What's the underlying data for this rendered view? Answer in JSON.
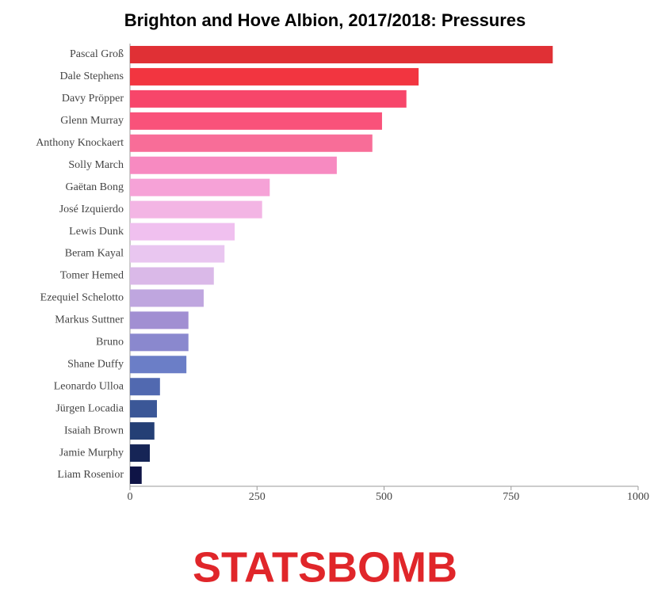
{
  "chart_data": {
    "type": "barh",
    "title": "Brighton and Hove Albion, 2017/2018: Pressures",
    "categories": [
      "Pascal Groß",
      "Dale Stephens",
      "Davy Pröpper",
      "Glenn Murray",
      "Anthony Knockaert",
      "Solly March",
      "Gaëtan Bong",
      "José Izquierdo",
      "Lewis Dunk",
      "Beram Kayal",
      "Tomer Hemed",
      "Ezequiel Schelotto",
      "Markus Suttner",
      "Bruno",
      "Shane Duffy",
      "Leonardo Ulloa",
      "Jürgen Locadia",
      "Isaiah Brown",
      "Jamie Murphy",
      "Liam Rosenior"
    ],
    "values": [
      832,
      568,
      544,
      496,
      477,
      407,
      275,
      260,
      206,
      186,
      165,
      145,
      115,
      115,
      111,
      59,
      53,
      48,
      39,
      23
    ],
    "colors": [
      "#e03035",
      "#f23540",
      "#f7466a",
      "#f9527a",
      "#f86d98",
      "#f78ac1",
      "#f6a2d7",
      "#f3b5e4",
      "#f0c0ef",
      "#e9c6f0",
      "#dab9e8",
      "#bfa6df",
      "#a18fd2",
      "#8a88ce",
      "#6b7ec7",
      "#5169b0",
      "#3b5797",
      "#243f75",
      "#162556",
      "#0f1446"
    ],
    "xlim": [
      0,
      1000
    ],
    "xticks": [
      0,
      250,
      500,
      750,
      1000
    ]
  },
  "logo": "STATSBOMB"
}
